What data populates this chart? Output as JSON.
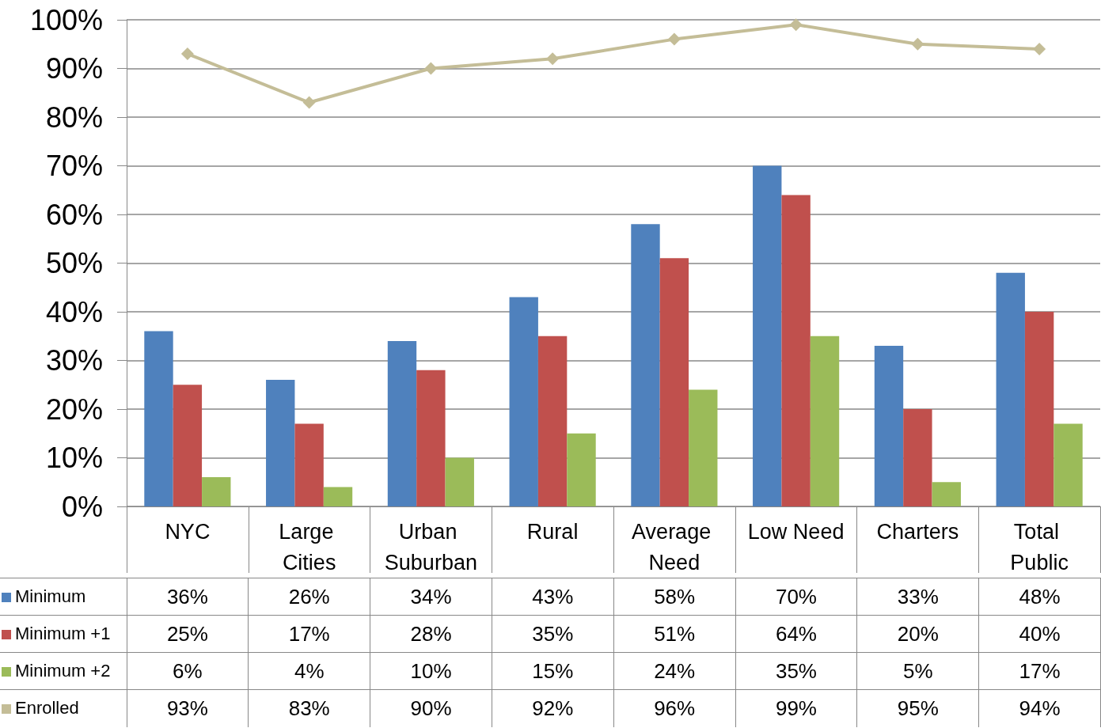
{
  "chart_data": {
    "type": "bar",
    "categories": [
      "NYC",
      "Large Cities",
      "Urban Suburban",
      "Rural",
      "Average Need",
      "Low Need",
      "Charters",
      "Total Public"
    ],
    "series": [
      {
        "name": "Minimum",
        "color": "#4f81bd",
        "values": [
          36,
          26,
          34,
          43,
          58,
          70,
          33,
          48
        ],
        "value_labels": [
          "36%",
          "26%",
          "34%",
          "43%",
          "58%",
          "70%",
          "33%",
          "48%"
        ]
      },
      {
        "name": "Minimum +1",
        "color": "#c0504d",
        "values": [
          25,
          17,
          28,
          35,
          51,
          64,
          20,
          40
        ],
        "value_labels": [
          "25%",
          "17%",
          "28%",
          "35%",
          "51%",
          "64%",
          "20%",
          "40%"
        ]
      },
      {
        "name": "Minimum +2",
        "color": "#9bbb59",
        "values": [
          6,
          4,
          10,
          15,
          24,
          35,
          5,
          17
        ],
        "value_labels": [
          "6%",
          "4%",
          "10%",
          "15%",
          "24%",
          "35%",
          "5%",
          "17%"
        ]
      },
      {
        "name": "Enrolled",
        "type": "line",
        "marker": "diamond",
        "color": "#c4bd97",
        "values": [
          93,
          83,
          90,
          92,
          96,
          99,
          95,
          94
        ],
        "value_labels": [
          "93%",
          "83%",
          "90%",
          "92%",
          "96%",
          "99%",
          "95%",
          "94%"
        ]
      }
    ],
    "ylim": [
      0,
      100
    ],
    "yticks": [
      {
        "value": 0,
        "label": "0%"
      },
      {
        "value": 10,
        "label": "10%"
      },
      {
        "value": 20,
        "label": "20%"
      },
      {
        "value": 30,
        "label": "30%"
      },
      {
        "value": 40,
        "label": "40%"
      },
      {
        "value": 50,
        "label": "50%"
      },
      {
        "value": 60,
        "label": "60%"
      },
      {
        "value": 70,
        "label": "70%"
      },
      {
        "value": 80,
        "label": "80%"
      },
      {
        "value": 90,
        "label": "90%"
      },
      {
        "value": 100,
        "label": "100%"
      }
    ],
    "grid": "y",
    "legend": "bottom left"
  }
}
